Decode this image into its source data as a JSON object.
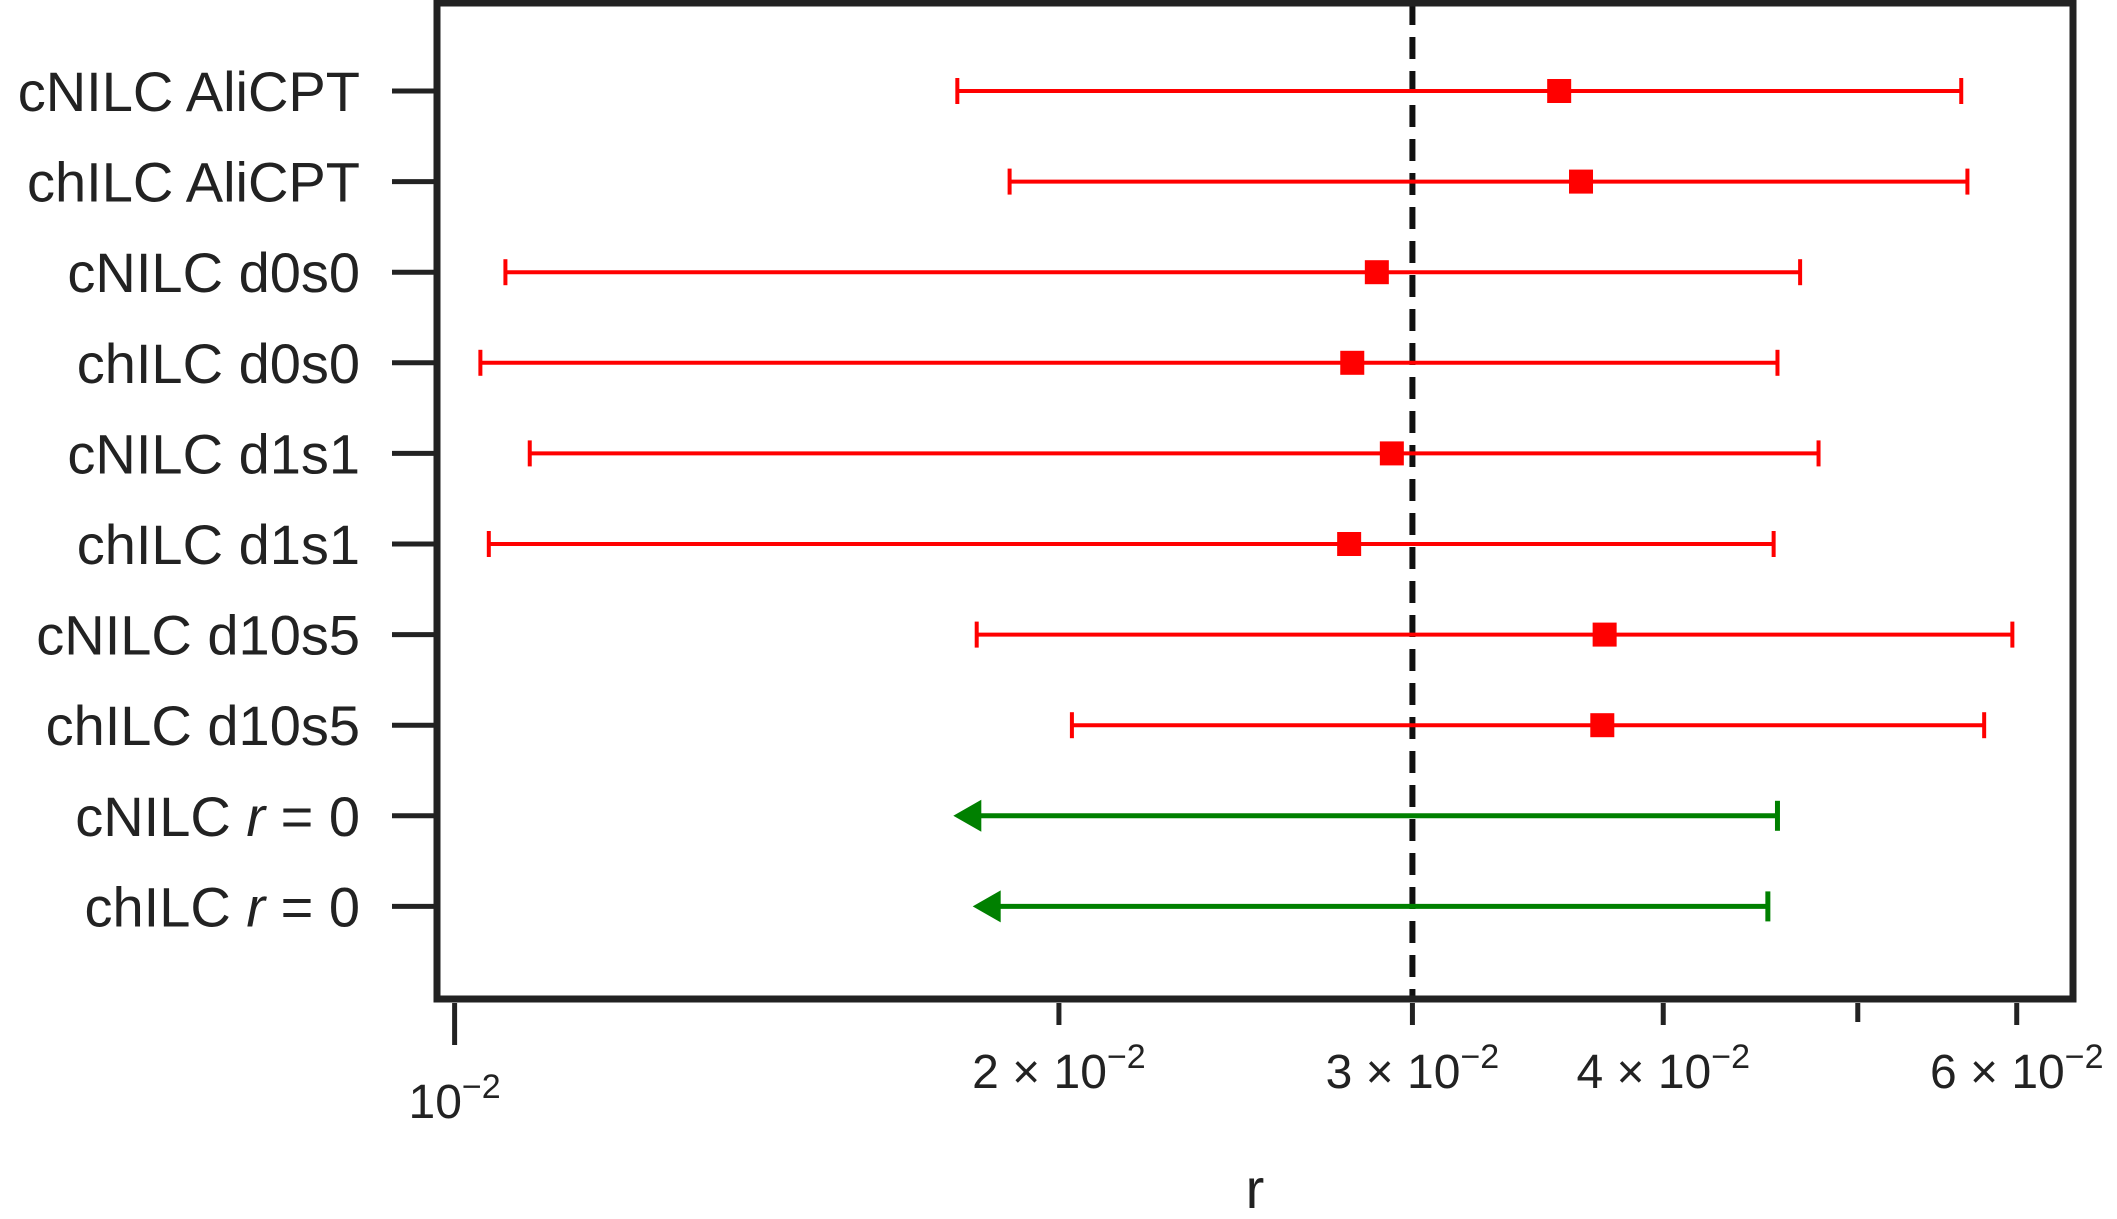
{
  "chart_data": {
    "type": "scatter",
    "title": "",
    "xlabel": "r",
    "ylabel": "",
    "x_scale": "log",
    "xlim": [
      0.0098,
      0.064
    ],
    "grid": false,
    "legend": "none",
    "reference_line": {
      "x": 0.03,
      "style": "dashed",
      "color": "#111111"
    },
    "x_ticks": [
      {
        "value": 0.01,
        "base": "10",
        "exp": "−2",
        "mult": ""
      },
      {
        "value": 0.02,
        "base": "10",
        "exp": "−2",
        "mult": "2 × "
      },
      {
        "value": 0.03,
        "base": "10",
        "exp": "−2",
        "mult": "3 × "
      },
      {
        "value": 0.04,
        "base": "10",
        "exp": "−2",
        "mult": "4 × "
      },
      {
        "value": 0.06,
        "base": "10",
        "exp": "−2",
        "mult": "6 × "
      }
    ],
    "x_minor_ticks": [
      0.05
    ],
    "colors": {
      "measurement": "#ff0000",
      "upper_limit": "#008000",
      "axis": "#222222"
    },
    "rows": [
      {
        "label": "cNILC AliCPT",
        "kind": "measurement",
        "value": 0.0355,
        "low": 0.0178,
        "high": 0.0563
      },
      {
        "label": "chILC AliCPT",
        "kind": "measurement",
        "value": 0.0364,
        "low": 0.0189,
        "high": 0.0567
      },
      {
        "label": "cNILC d0s0",
        "kind": "measurement",
        "value": 0.0288,
        "low": 0.0106,
        "high": 0.0468
      },
      {
        "label": "chILC d0s0",
        "kind": "measurement",
        "value": 0.028,
        "low": 0.0103,
        "high": 0.0456
      },
      {
        "label": "cNILC d1s1",
        "kind": "measurement",
        "value": 0.0293,
        "low": 0.0109,
        "high": 0.0478
      },
      {
        "label": "chILC d1s1",
        "kind": "measurement",
        "value": 0.0279,
        "low": 0.0104,
        "high": 0.0454
      },
      {
        "label": "cNILC d10s5",
        "kind": "measurement",
        "value": 0.0374,
        "low": 0.0182,
        "high": 0.0597
      },
      {
        "label": "chILC d10s5",
        "kind": "measurement",
        "value": 0.0373,
        "low": 0.0203,
        "high": 0.0578
      },
      {
        "label_prefix": "cNILC ",
        "label_var": "r",
        "label_suffix": " = 0",
        "kind": "upper_limit",
        "arrow_to": 0.0178,
        "limit": 0.0456
      },
      {
        "label_prefix": "chILC ",
        "label_var": "r",
        "label_suffix": " = 0",
        "kind": "upper_limit",
        "arrow_to": 0.0182,
        "limit": 0.0451
      }
    ]
  }
}
